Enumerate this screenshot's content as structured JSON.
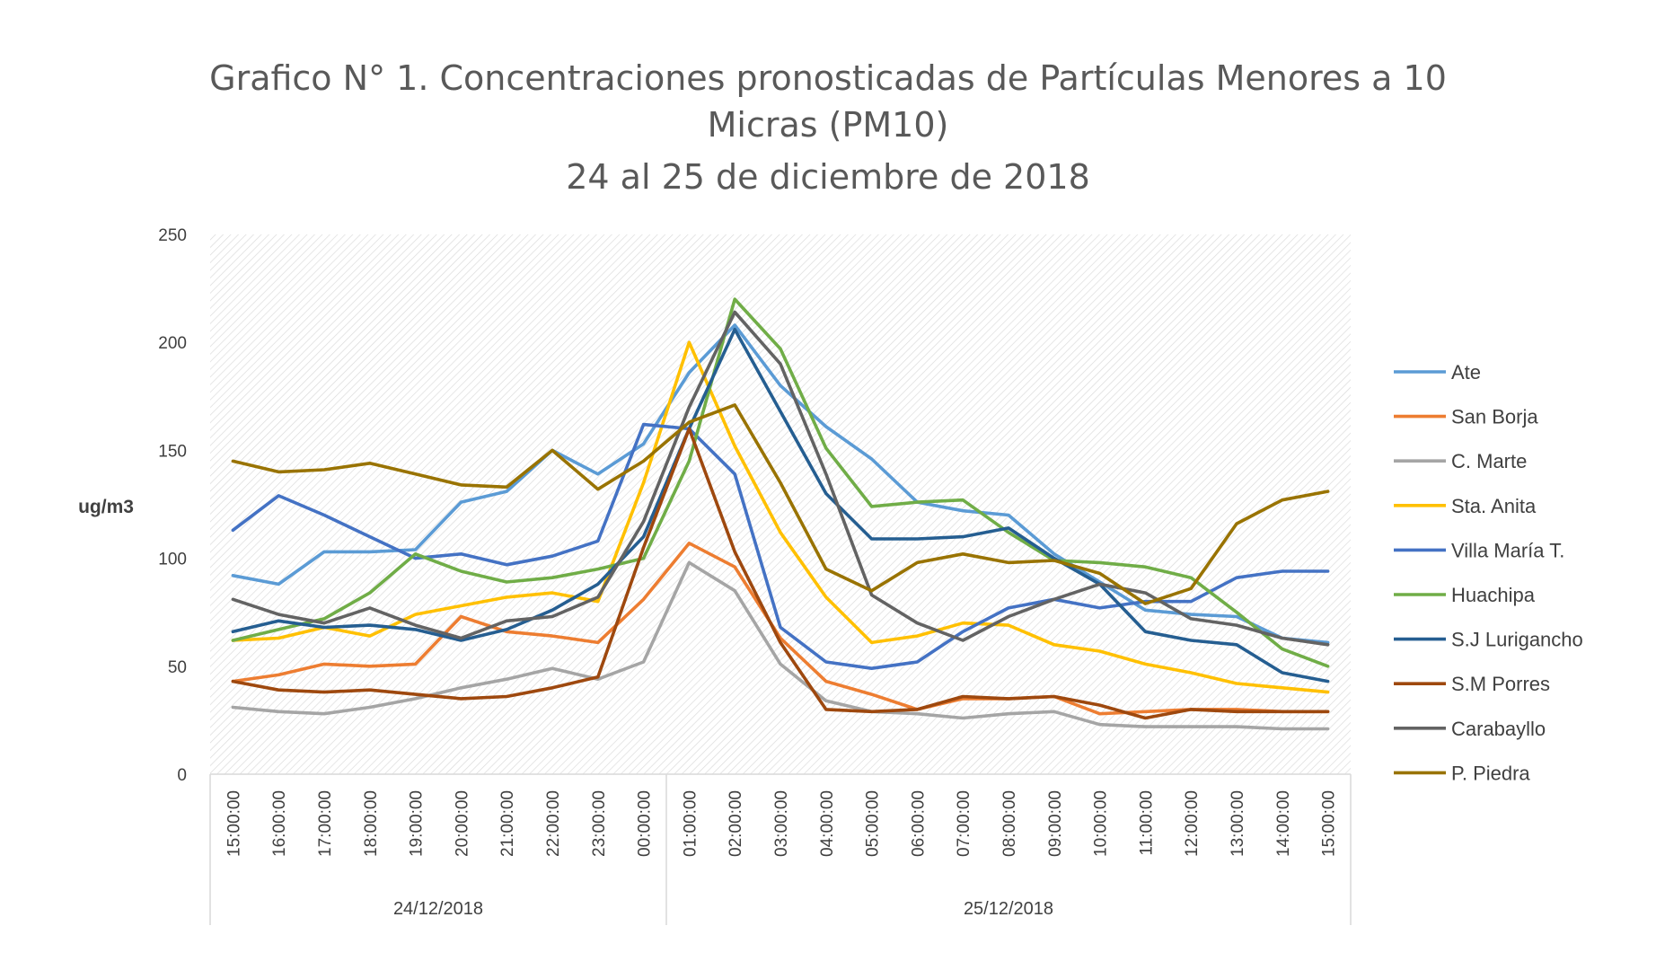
{
  "chart_data": {
    "type": "line",
    "title_lines": [
      "Grafico N° 1. Concentraciones pronosticadas de Partículas Menores a 10",
      "Micras (PM10)",
      "24 al 25 de diciembre de 2018"
    ],
    "ylabel": "ug/m3",
    "xlabel": "",
    "ylim": [
      0,
      250
    ],
    "yticks": [
      0,
      50,
      100,
      150,
      200,
      250
    ],
    "grid": false,
    "plot_background": "diagonal-hatch",
    "legend_position": "right",
    "categories": [
      "15:00:00",
      "16:00:00",
      "17:00:00",
      "18:00:00",
      "19:00:00",
      "20:00:00",
      "21:00:00",
      "22:00:00",
      "23:00:00",
      "00:00:00",
      "01:00:00",
      "02:00:00",
      "03:00:00",
      "04:00:00",
      "05:00:00",
      "06:00:00",
      "07:00:00",
      "08:00:00",
      "09:00:00",
      "10:00:00",
      "11:00:00",
      "12:00:00",
      "13:00:00",
      "14:00:00",
      "15:00:00"
    ],
    "date_groups": [
      {
        "label": "24/12/2018",
        "count": 10
      },
      {
        "label": "25/12/2018",
        "count": 15
      }
    ],
    "series": [
      {
        "name": "Ate",
        "color": "#5B9BD5",
        "values": [
          92,
          88,
          103,
          103,
          104,
          126,
          131,
          150,
          139,
          153,
          186,
          208,
          180,
          161,
          146,
          126,
          122,
          120,
          102,
          89,
          76,
          74,
          73,
          63,
          61
        ]
      },
      {
        "name": "San Borja",
        "color": "#ED7D31",
        "values": [
          43,
          46,
          51,
          50,
          51,
          73,
          66,
          64,
          61,
          81,
          107,
          96,
          63,
          43,
          37,
          30,
          35,
          35,
          36,
          28,
          29,
          30,
          30,
          29,
          29
        ]
      },
      {
        "name": "C. Marte",
        "color": "#A5A5A5",
        "values": [
          31,
          29,
          28,
          31,
          35,
          40,
          44,
          49,
          44,
          52,
          98,
          85,
          51,
          34,
          29,
          28,
          26,
          28,
          29,
          23,
          22,
          22,
          22,
          21,
          21
        ]
      },
      {
        "name": "Sta. Anita",
        "color": "#FFC000",
        "values": [
          62,
          63,
          68,
          64,
          74,
          78,
          82,
          84,
          80,
          135,
          200,
          152,
          112,
          82,
          61,
          64,
          70,
          69,
          60,
          57,
          51,
          47,
          42,
          40,
          38
        ]
      },
      {
        "name": "Villa María T.",
        "color": "#4472C4",
        "values": [
          113,
          129,
          120,
          110,
          100,
          102,
          97,
          101,
          108,
          162,
          160,
          139,
          68,
          52,
          49,
          52,
          66,
          77,
          81,
          77,
          80,
          80,
          91,
          94,
          94
        ]
      },
      {
        "name": "Huachipa",
        "color": "#70AD47",
        "values": [
          62,
          67,
          72,
          84,
          102,
          94,
          89,
          91,
          95,
          100,
          145,
          220,
          197,
          151,
          124,
          126,
          127,
          112,
          99,
          98,
          96,
          91,
          75,
          58,
          50
        ]
      },
      {
        "name": "S.J Lurigancho",
        "color": "#255E91",
        "values": [
          66,
          71,
          68,
          69,
          67,
          62,
          67,
          76,
          88,
          110,
          160,
          206,
          168,
          130,
          109,
          109,
          110,
          114,
          100,
          88,
          66,
          62,
          60,
          47,
          43
        ]
      },
      {
        "name": "S.M Porres",
        "color": "#9E480E",
        "values": [
          43,
          39,
          38,
          39,
          37,
          35,
          36,
          40,
          45,
          105,
          160,
          103,
          61,
          30,
          29,
          30,
          36,
          35,
          36,
          32,
          26,
          30,
          29,
          29,
          29
        ]
      },
      {
        "name": "Carabayllo",
        "color": "#636363",
        "values": [
          81,
          74,
          70,
          77,
          69,
          63,
          71,
          73,
          82,
          117,
          170,
          214,
          190,
          139,
          83,
          70,
          62,
          73,
          81,
          88,
          84,
          72,
          69,
          63,
          60
        ]
      },
      {
        "name": "P. Piedra",
        "color": "#997300",
        "values": [
          145,
          140,
          141,
          144,
          139,
          134,
          133,
          150,
          132,
          145,
          163,
          171,
          135,
          95,
          85,
          98,
          102,
          98,
          99,
          93,
          79,
          86,
          116,
          127,
          131
        ]
      }
    ]
  }
}
